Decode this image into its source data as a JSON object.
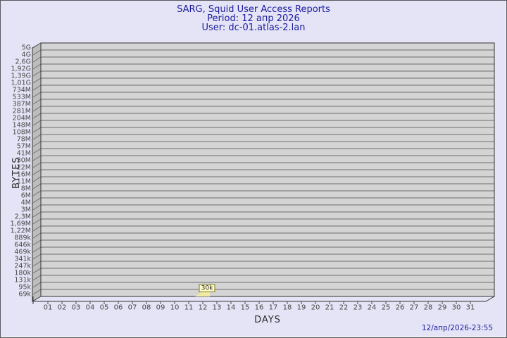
{
  "header": {
    "title": "SARG, Squid User Access Reports",
    "period": "Period: 12 апр 2026",
    "user": "User: dc-01.atlas-2.lan"
  },
  "footer": {
    "timestamp": "12/апр/2026-23:55"
  },
  "chart_data": {
    "type": "bar",
    "title": "SARG, Squid User Access Reports",
    "subtitle": [
      "Period: 12 апр 2026",
      "User: dc-01.atlas-2.lan"
    ],
    "xlabel": "DAYS",
    "ylabel": "BYTES",
    "y_scale": "log",
    "ylim_bytes": [
      69000,
      5000000000
    ],
    "grid": true,
    "legend": "none",
    "style": "3d-walls",
    "y_ticks": [
      "5G",
      "4G",
      "2,6G",
      "1,92G",
      "1,39G",
      "1,01G",
      "734M",
      "533M",
      "387M",
      "281M",
      "204M",
      "148M",
      "108M",
      "78M",
      "57M",
      "41M",
      "30M",
      "22M",
      "16M",
      "11M",
      "8M",
      "6M",
      "4M",
      "3M",
      "2,3M",
      "1,69M",
      "1,22M",
      "889k",
      "646k",
      "469k",
      "341k",
      "247k",
      "180k",
      "131k",
      "95k",
      "69k"
    ],
    "x_ticks": [
      "01",
      "02",
      "03",
      "04",
      "05",
      "06",
      "07",
      "08",
      "09",
      "10",
      "11",
      "12",
      "13",
      "14",
      "15",
      "16",
      "17",
      "18",
      "19",
      "20",
      "21",
      "22",
      "23",
      "24",
      "25",
      "26",
      "27",
      "28",
      "29",
      "30",
      "31"
    ],
    "bars": [
      {
        "day": "12",
        "label": "30k",
        "value_bytes": 30000
      }
    ],
    "colors": {
      "background": "#e4e4f6",
      "plot_face": "#d4d4d4",
      "plot_wall": "#bdbdbd",
      "grid_line": "#6e6e6e",
      "plot_border": "#333333",
      "title_text": "#1c1c9e",
      "tick_text": "#474747",
      "bar_fill": "#f0e9a2",
      "bar_label_bg": "#fdfcc8",
      "bar_label_border": "#7a7a1e",
      "bar_label_text": "#1a1a1a"
    }
  }
}
